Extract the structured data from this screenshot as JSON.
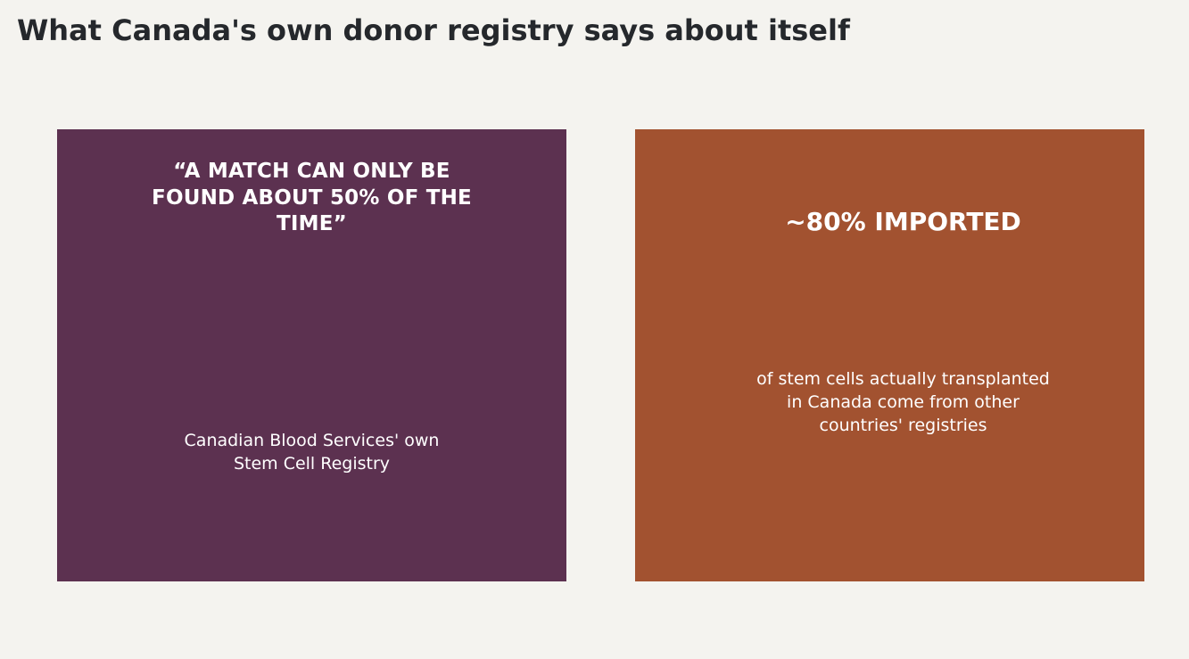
{
  "page": {
    "title": "What Canada's own donor registry says about itself"
  },
  "panels": [
    {
      "quote": "“A MATCH CAN ONLY BE FOUND ABOUT 50% OF THE TIME”",
      "source": "Canadian Blood Services' own Stem Cell Registry",
      "color": "#5c3150"
    },
    {
      "stat": "~80% IMPORTED",
      "description": "of stem cells actually transplanted in Canada come from other countries' registries",
      "color": "#a25230"
    }
  ]
}
